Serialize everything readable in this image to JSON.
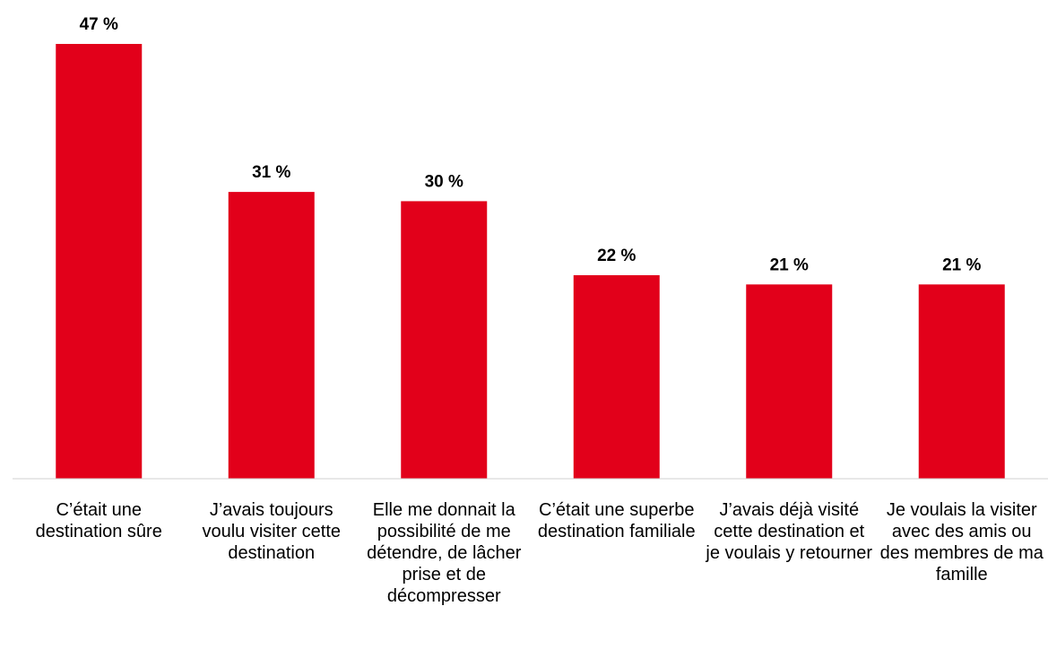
{
  "chart_data": {
    "type": "bar",
    "categories": [
      "C’était une destination sûre",
      "J’avais toujours voulu visiter cette destination",
      "Elle me donnait la possibilité de me détendre, de lâcher prise et de décompresser",
      "C’était une superbe destination familiale",
      "J’avais déjà visité cette destination et je voulais y retourner",
      "Je voulais la visiter avec des amis ou des membres de ma famille"
    ],
    "values": [
      47,
      31,
      30,
      22,
      21,
      21
    ],
    "value_labels": [
      "47 %",
      "31 %",
      "30 %",
      "22 %",
      "21 %",
      "21 %"
    ],
    "color": "#e2001a"
  }
}
